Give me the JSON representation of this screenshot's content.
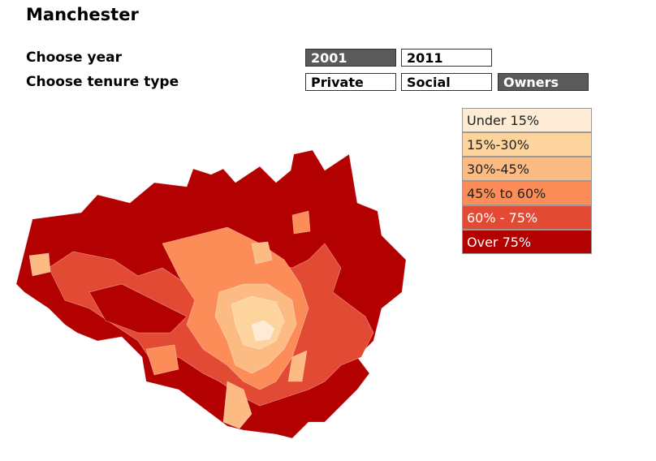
{
  "header": {
    "title": "Manchester"
  },
  "controls": [
    {
      "label": "Choose year",
      "options": [
        {
          "text": "2001",
          "selected": true
        },
        {
          "text": "2011",
          "selected": false
        }
      ]
    },
    {
      "label": "Choose tenure type",
      "options": [
        {
          "text": "Private",
          "selected": false
        },
        {
          "text": "Social",
          "selected": false
        },
        {
          "text": "Owners",
          "selected": true
        }
      ]
    }
  ],
  "legend": [
    {
      "label": "Under 15%",
      "color": "#feebd6"
    },
    {
      "label": "15%-30%",
      "color": "#fdd49e"
    },
    {
      "label": "30%-45%",
      "color": "#fdbb84"
    },
    {
      "label": "45% to 60%",
      "color": "#fc8d59"
    },
    {
      "label": "60% - 75%",
      "color": "#e34a33"
    },
    {
      "label": "Over 75%",
      "color": "#b30000"
    }
  ]
}
